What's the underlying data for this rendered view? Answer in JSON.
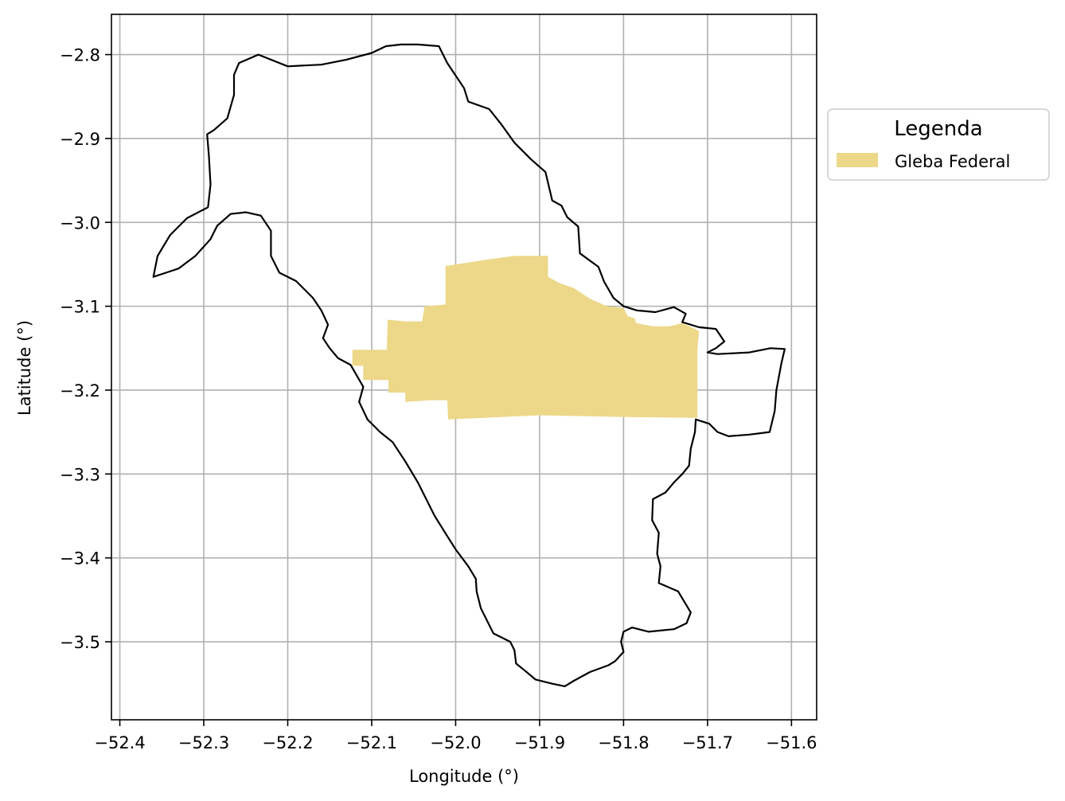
{
  "chart_data": {
    "type": "map",
    "xlabel": "Longitude (°)",
    "ylabel": "Latitude (°)",
    "xlim": [
      -52.41,
      -51.57
    ],
    "ylim": [
      -3.593,
      -2.752
    ],
    "xticks": [
      -52.4,
      -52.3,
      -52.2,
      -52.1,
      -52.0,
      -51.9,
      -51.8,
      -51.7,
      -51.6
    ],
    "yticks": [
      -2.8,
      -2.9,
      -3.0,
      -3.1,
      -3.2,
      -3.3,
      -3.4,
      -3.5
    ],
    "xtick_labels": [
      "−52.4",
      "−52.3",
      "−52.2",
      "−52.1",
      "−52.0",
      "−51.9",
      "−51.8",
      "−51.7",
      "−51.6"
    ],
    "ytick_labels": [
      "−2.8",
      "−2.9",
      "−3.0",
      "−3.1",
      "−3.2",
      "−3.3",
      "−3.4",
      "−3.5"
    ],
    "grid": true,
    "legend": {
      "title": "Legenda",
      "placement": "outside-right",
      "entries": [
        {
          "label": "Gleba Federal",
          "color": "#ecd888"
        }
      ]
    },
    "boundary": {
      "stroke": "#000000",
      "coords": [
        [
          -52.36,
          -3.065
        ],
        [
          -52.355,
          -3.04
        ],
        [
          -52.34,
          -3.015
        ],
        [
          -52.32,
          -2.995
        ],
        [
          -52.295,
          -2.982
        ],
        [
          -52.292,
          -2.955
        ],
        [
          -52.294,
          -2.92
        ],
        [
          -52.296,
          -2.895
        ],
        [
          -52.288,
          -2.89
        ],
        [
          -52.272,
          -2.876
        ],
        [
          -52.264,
          -2.848
        ],
        [
          -52.264,
          -2.824
        ],
        [
          -52.258,
          -2.81
        ],
        [
          -52.235,
          -2.8
        ],
        [
          -52.2,
          -2.814
        ],
        [
          -52.16,
          -2.812
        ],
        [
          -52.13,
          -2.806
        ],
        [
          -52.1,
          -2.798
        ],
        [
          -52.083,
          -2.79
        ],
        [
          -52.065,
          -2.788
        ],
        [
          -52.045,
          -2.788
        ],
        [
          -52.02,
          -2.79
        ],
        [
          -52.01,
          -2.81
        ],
        [
          -51.99,
          -2.84
        ],
        [
          -51.985,
          -2.856
        ],
        [
          -51.96,
          -2.865
        ],
        [
          -51.945,
          -2.884
        ],
        [
          -51.93,
          -2.905
        ],
        [
          -51.91,
          -2.925
        ],
        [
          -51.893,
          -2.94
        ],
        [
          -51.885,
          -2.974
        ],
        [
          -51.874,
          -2.98
        ],
        [
          -51.867,
          -2.994
        ],
        [
          -51.854,
          -3.005
        ],
        [
          -51.852,
          -3.037
        ],
        [
          -51.83,
          -3.053
        ],
        [
          -51.823,
          -3.071
        ],
        [
          -51.812,
          -3.09
        ],
        [
          -51.8,
          -3.1
        ],
        [
          -51.784,
          -3.105
        ],
        [
          -51.762,
          -3.107
        ],
        [
          -51.74,
          -3.101
        ],
        [
          -51.726,
          -3.109
        ],
        [
          -51.73,
          -3.119
        ],
        [
          -51.71,
          -3.125
        ],
        [
          -51.69,
          -3.127
        ],
        [
          -51.68,
          -3.142
        ],
        [
          -51.69,
          -3.15
        ],
        [
          -51.7,
          -3.155
        ],
        [
          -51.688,
          -3.157
        ],
        [
          -51.65,
          -3.155
        ],
        [
          -51.625,
          -3.15
        ],
        [
          -51.608,
          -3.151
        ],
        [
          -51.612,
          -3.168
        ],
        [
          -51.618,
          -3.2
        ],
        [
          -51.62,
          -3.225
        ],
        [
          -51.626,
          -3.25
        ],
        [
          -51.65,
          -3.253
        ],
        [
          -51.675,
          -3.255
        ],
        [
          -51.688,
          -3.25
        ],
        [
          -51.698,
          -3.24
        ],
        [
          -51.714,
          -3.235
        ],
        [
          -51.715,
          -3.25
        ],
        [
          -51.72,
          -3.27
        ],
        [
          -51.722,
          -3.29
        ],
        [
          -51.73,
          -3.3
        ],
        [
          -51.74,
          -3.31
        ],
        [
          -51.75,
          -3.322
        ],
        [
          -51.765,
          -3.33
        ],
        [
          -51.766,
          -3.355
        ],
        [
          -51.758,
          -3.37
        ],
        [
          -51.76,
          -3.395
        ],
        [
          -51.756,
          -3.41
        ],
        [
          -51.758,
          -3.43
        ],
        [
          -51.735,
          -3.44
        ],
        [
          -51.72,
          -3.465
        ],
        [
          -51.725,
          -3.478
        ],
        [
          -51.74,
          -3.485
        ],
        [
          -51.77,
          -3.488
        ],
        [
          -51.79,
          -3.483
        ],
        [
          -51.8,
          -3.488
        ],
        [
          -51.803,
          -3.5
        ],
        [
          -51.8,
          -3.512
        ],
        [
          -51.81,
          -3.523
        ],
        [
          -51.818,
          -3.528
        ],
        [
          -51.84,
          -3.536
        ],
        [
          -51.86,
          -3.547
        ],
        [
          -51.87,
          -3.553
        ],
        [
          -51.885,
          -3.55
        ],
        [
          -51.905,
          -3.545
        ],
        [
          -51.918,
          -3.534
        ],
        [
          -51.928,
          -3.526
        ],
        [
          -51.93,
          -3.51
        ],
        [
          -51.935,
          -3.5
        ],
        [
          -51.955,
          -3.49
        ],
        [
          -51.97,
          -3.46
        ],
        [
          -51.975,
          -3.44
        ],
        [
          -51.976,
          -3.425
        ],
        [
          -51.985,
          -3.41
        ],
        [
          -52.0,
          -3.39
        ],
        [
          -52.01,
          -3.374
        ],
        [
          -52.025,
          -3.35
        ],
        [
          -52.035,
          -3.33
        ],
        [
          -52.045,
          -3.31
        ],
        [
          -52.06,
          -3.285
        ],
        [
          -52.075,
          -3.262
        ],
        [
          -52.09,
          -3.25
        ],
        [
          -52.105,
          -3.235
        ],
        [
          -52.115,
          -3.214
        ],
        [
          -52.11,
          -3.196
        ],
        [
          -52.125,
          -3.17
        ],
        [
          -52.14,
          -3.162
        ],
        [
          -52.15,
          -3.15
        ],
        [
          -52.158,
          -3.138
        ],
        [
          -52.152,
          -3.122
        ],
        [
          -52.16,
          -3.105
        ],
        [
          -52.17,
          -3.09
        ],
        [
          -52.19,
          -3.07
        ],
        [
          -52.21,
          -3.06
        ],
        [
          -52.22,
          -3.04
        ],
        [
          -52.22,
          -3.01
        ],
        [
          -52.232,
          -2.992
        ],
        [
          -52.25,
          -2.988
        ],
        [
          -52.268,
          -2.99
        ],
        [
          -52.284,
          -3.004
        ],
        [
          -52.292,
          -3.02
        ],
        [
          -52.31,
          -3.04
        ],
        [
          -52.33,
          -3.055
        ],
        [
          -52.345,
          -3.06
        ],
        [
          -52.36,
          -3.065
        ]
      ]
    },
    "gleba_federal": {
      "fill": "#ecd888",
      "coords": [
        [
          -52.012,
          -3.052
        ],
        [
          -51.96,
          -3.044
        ],
        [
          -51.93,
          -3.04
        ],
        [
          -51.89,
          -3.04
        ],
        [
          -51.89,
          -3.065
        ],
        [
          -51.875,
          -3.073
        ],
        [
          -51.86,
          -3.078
        ],
        [
          -51.84,
          -3.091
        ],
        [
          -51.82,
          -3.1
        ],
        [
          -51.8,
          -3.102
        ],
        [
          -51.795,
          -3.112
        ],
        [
          -51.787,
          -3.114
        ],
        [
          -51.785,
          -3.12
        ],
        [
          -51.765,
          -3.124
        ],
        [
          -51.745,
          -3.124
        ],
        [
          -51.73,
          -3.12
        ],
        [
          -51.715,
          -3.127
        ],
        [
          -51.71,
          -3.13
        ],
        [
          -51.712,
          -3.15
        ],
        [
          -51.712,
          -3.233
        ],
        [
          -51.8,
          -3.232
        ],
        [
          -51.9,
          -3.23
        ],
        [
          -52.009,
          -3.235
        ],
        [
          -52.01,
          -3.212
        ],
        [
          -52.03,
          -3.212
        ],
        [
          -52.06,
          -3.214
        ],
        [
          -52.06,
          -3.203
        ],
        [
          -52.08,
          -3.203
        ],
        [
          -52.08,
          -3.188
        ],
        [
          -52.11,
          -3.188
        ],
        [
          -52.11,
          -3.171
        ],
        [
          -52.123,
          -3.171
        ],
        [
          -52.123,
          -3.152
        ],
        [
          -52.082,
          -3.152
        ],
        [
          -52.081,
          -3.116
        ],
        [
          -52.06,
          -3.118
        ],
        [
          -52.04,
          -3.118
        ],
        [
          -52.037,
          -3.1
        ],
        [
          -52.012,
          -3.098
        ],
        [
          -52.012,
          -3.052
        ]
      ]
    }
  }
}
